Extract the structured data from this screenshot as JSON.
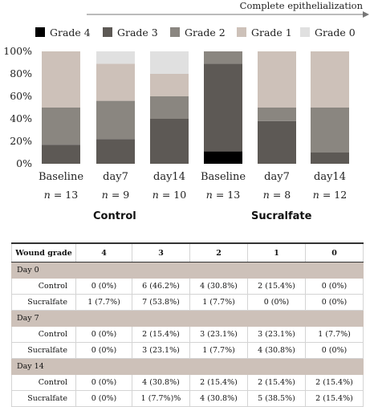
{
  "chart_data": {
    "type": "bar",
    "stacked": true,
    "header_arrow_label": "Complete epithelialization",
    "legend_position": "top",
    "categories": [
      "Baseline",
      "day7",
      "day14",
      "Baseline",
      "day7",
      "day14"
    ],
    "n_labels": [
      "13",
      "9",
      "10",
      "13",
      "8",
      "12"
    ],
    "n_prefix": "n",
    "groups": [
      {
        "label": "Control",
        "categories": [
          0,
          1,
          2
        ]
      },
      {
        "label": "Sucralfate",
        "categories": [
          3,
          4,
          5
        ]
      }
    ],
    "ylim": [
      0,
      100
    ],
    "yticks": [
      0,
      20,
      40,
      60,
      80,
      100
    ],
    "ytick_suffix": "%",
    "series": [
      {
        "name": "Grade 4",
        "color": "#000000",
        "values": [
          0,
          0,
          0,
          11,
          0,
          0
        ]
      },
      {
        "name": "Grade 3",
        "color": "#5d5955",
        "values": [
          17,
          22,
          40,
          78,
          38,
          10
        ]
      },
      {
        "name": "Grade 2",
        "color": "#8a8680",
        "values": [
          33,
          34,
          20,
          11,
          12,
          40
        ]
      },
      {
        "name": "Grade 1",
        "color": "#cdc1b9",
        "values": [
          50,
          33,
          20,
          0,
          50,
          50
        ]
      },
      {
        "name": "Grade 0",
        "color": "#e0e0e0",
        "values": [
          0,
          11,
          20,
          0,
          0,
          0
        ]
      }
    ]
  },
  "table": {
    "headers": [
      "Wound grade",
      "4",
      "3",
      "2",
      "1",
      "0"
    ],
    "sections": [
      {
        "title": "Day 0",
        "rows": [
          {
            "label": "Control",
            "cells": [
              "0 (0%)",
              "6 (46.2%)",
              "4 (30.8%)",
              "2 (15.4%)",
              "0 (0%)"
            ]
          },
          {
            "label": "Sucralfate",
            "cells": [
              "1 (7.7%)",
              "7 (53.8%)",
              "1 (7.7%)",
              "0 (0%)",
              "0 (0%)"
            ]
          }
        ]
      },
      {
        "title": "Day 7",
        "rows": [
          {
            "label": "Control",
            "cells": [
              "0 (0%)",
              "2 (15.4%)",
              "3 (23.1%)",
              "3 (23.1%)",
              "1 (7.7%)"
            ]
          },
          {
            "label": "Sucralfate",
            "cells": [
              "0 (0%)",
              "3 (23.1%)",
              "1 (7.7%)",
              "4 (30.8%)",
              "0 (0%)"
            ]
          }
        ]
      },
      {
        "title": "Day 14",
        "rows": [
          {
            "label": "Control",
            "cells": [
              "0 (0%)",
              "4 (30.8%)",
              "2 (15.4%)",
              "2 (15.4%)",
              "2 (15.4%)"
            ]
          },
          {
            "label": "Sucralfate",
            "cells": [
              "0 (0%)",
              "1 (7.7%)%",
              "4 (30.8%)",
              "5 (38.5%)",
              "2 (15.4%)"
            ]
          }
        ]
      }
    ]
  }
}
